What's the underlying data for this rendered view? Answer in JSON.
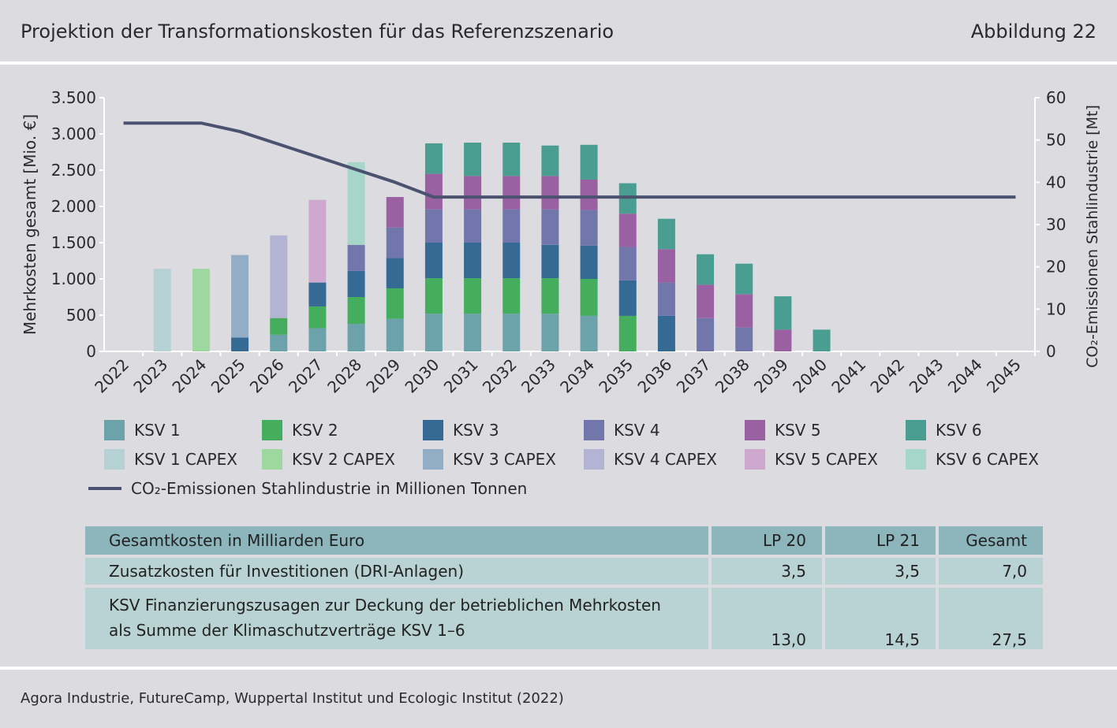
{
  "header": {
    "title": "Projektion der Transformationskosten für das Referenzszenario",
    "figure_label": "Abbildung 22"
  },
  "chart_data": {
    "type": "bar",
    "stacked": true,
    "categories": [
      "2022",
      "2023",
      "2024",
      "2025",
      "2026",
      "2027",
      "2028",
      "2029",
      "2030",
      "2031",
      "2032",
      "2033",
      "2034",
      "2035",
      "2036",
      "2037",
      "2038",
      "2039",
      "2040",
      "2041",
      "2042",
      "2043",
      "2044",
      "2045"
    ],
    "ylabel": "Mehrkosten gesamt [Mio. €]",
    "ylim": [
      0,
      3500
    ],
    "yticks": [
      0,
      500,
      1000,
      1500,
      2000,
      2500,
      3000,
      3500
    ],
    "ytick_labels": [
      "0",
      "500",
      "1.000",
      "1.500",
      "2.000",
      "2.500",
      "3.000",
      "3.500"
    ],
    "y2label": "CO₂-Emissionen Stahlindustrie [Mt]",
    "y2lim": [
      0,
      60
    ],
    "y2ticks": [
      0,
      10,
      20,
      30,
      40,
      50,
      60
    ],
    "series": [
      {
        "name": "KSV 1",
        "color": "#6ca3ab",
        "values": [
          0,
          0,
          0,
          0,
          230,
          320,
          380,
          450,
          520,
          520,
          520,
          520,
          490,
          0,
          0,
          0,
          0,
          0,
          0,
          0,
          0,
          0,
          0,
          0
        ]
      },
      {
        "name": "KSV 1 CAPEX",
        "color": "#b6d1d4",
        "values": [
          0,
          1140,
          0,
          0,
          0,
          0,
          0,
          0,
          0,
          0,
          0,
          0,
          0,
          0,
          0,
          0,
          0,
          0,
          0,
          0,
          0,
          0,
          0,
          0
        ]
      },
      {
        "name": "KSV 2",
        "color": "#44ad5e",
        "values": [
          0,
          0,
          0,
          0,
          230,
          300,
          370,
          420,
          490,
          490,
          490,
          490,
          510,
          490,
          0,
          0,
          0,
          0,
          0,
          0,
          0,
          0,
          0,
          0
        ]
      },
      {
        "name": "KSV 2 CAPEX",
        "color": "#9ed89f",
        "values": [
          0,
          0,
          1140,
          0,
          0,
          0,
          0,
          0,
          0,
          0,
          0,
          0,
          0,
          0,
          0,
          0,
          0,
          0,
          0,
          0,
          0,
          0,
          0,
          0
        ]
      },
      {
        "name": "KSV 3",
        "color": "#356a94",
        "values": [
          0,
          0,
          0,
          190,
          0,
          330,
          360,
          420,
          490,
          490,
          490,
          460,
          460,
          490,
          490,
          0,
          0,
          0,
          0,
          0,
          0,
          0,
          0,
          0
        ]
      },
      {
        "name": "KSV 3 CAPEX",
        "color": "#92adc6",
        "values": [
          0,
          0,
          0,
          1140,
          0,
          0,
          0,
          0,
          0,
          0,
          0,
          0,
          0,
          0,
          0,
          0,
          0,
          0,
          0,
          0,
          0,
          0,
          0,
          0
        ]
      },
      {
        "name": "KSV 4",
        "color": "#7277ab",
        "values": [
          0,
          0,
          0,
          0,
          0,
          0,
          360,
          420,
          460,
          460,
          460,
          490,
          490,
          460,
          460,
          460,
          330,
          0,
          0,
          0,
          0,
          0,
          0,
          0
        ]
      },
      {
        "name": "KSV 4 CAPEX",
        "color": "#b3b4d4",
        "values": [
          0,
          0,
          0,
          0,
          1140,
          0,
          0,
          0,
          0,
          0,
          0,
          0,
          0,
          0,
          0,
          0,
          0,
          0,
          0,
          0,
          0,
          0,
          0,
          0
        ]
      },
      {
        "name": "KSV 5",
        "color": "#9a61a2",
        "values": [
          0,
          0,
          0,
          0,
          0,
          0,
          0,
          420,
          490,
          460,
          460,
          460,
          420,
          460,
          460,
          460,
          460,
          300,
          0,
          0,
          0,
          0,
          0,
          0
        ]
      },
      {
        "name": "KSV 5 CAPEX",
        "color": "#cfa8d0",
        "values": [
          0,
          0,
          0,
          0,
          0,
          1140,
          0,
          0,
          0,
          0,
          0,
          0,
          0,
          0,
          0,
          0,
          0,
          0,
          0,
          0,
          0,
          0,
          0,
          0
        ]
      },
      {
        "name": "KSV 6",
        "color": "#4a9e91",
        "values": [
          0,
          0,
          0,
          0,
          0,
          0,
          0,
          0,
          420,
          460,
          460,
          420,
          480,
          420,
          420,
          420,
          420,
          460,
          300,
          0,
          0,
          0,
          0,
          0
        ]
      },
      {
        "name": "KSV 6 CAPEX",
        "color": "#a6d5c9",
        "values": [
          0,
          0,
          0,
          0,
          0,
          0,
          1140,
          0,
          0,
          0,
          0,
          0,
          0,
          0,
          0,
          0,
          0,
          0,
          0,
          0,
          0,
          0,
          0,
          0
        ]
      }
    ],
    "line_series": {
      "name": "CO₂-Emissionen Stahlindustrie in Millionen Tonnen",
      "color": "#4a5270",
      "axis": "right",
      "values": [
        54,
        54,
        54,
        52,
        49,
        46,
        43,
        40,
        36.5,
        36.5,
        36.5,
        36.5,
        36.5,
        36.5,
        36.5,
        36.5,
        36.5,
        36.5,
        36.5,
        36.5,
        36.5,
        36.5,
        36.5,
        36.5
      ]
    },
    "legend_placement": "bottom",
    "grid": false
  },
  "legend": {
    "items": [
      {
        "label": "KSV 1",
        "color": "#6ca3ab"
      },
      {
        "label": "KSV 2",
        "color": "#44ad5e"
      },
      {
        "label": "KSV 3",
        "color": "#356a94"
      },
      {
        "label": "KSV 4",
        "color": "#7277ab"
      },
      {
        "label": "KSV 5",
        "color": "#9a61a2"
      },
      {
        "label": "KSV 6",
        "color": "#4a9e91"
      },
      {
        "label": "KSV 1 CAPEX",
        "color": "#b6d1d4"
      },
      {
        "label": "KSV 2 CAPEX",
        "color": "#9ed89f"
      },
      {
        "label": "KSV 3 CAPEX",
        "color": "#92adc6"
      },
      {
        "label": "KSV 4 CAPEX",
        "color": "#b3b4d4"
      },
      {
        "label": "KSV 5 CAPEX",
        "color": "#cfa8d0"
      },
      {
        "label": "KSV 6 CAPEX",
        "color": "#a6d5c9"
      }
    ],
    "line_label": "CO₂-Emissionen Stahlindustrie in Millionen Tonnen"
  },
  "table": {
    "headers": [
      "Gesamtkosten in Milliarden Euro",
      "LP 20",
      "LP 21",
      "Gesamt"
    ],
    "rows": [
      {
        "label": "Zusatzkosten für Investitionen (DRI-Anlagen)",
        "lp20": "3,5",
        "lp21": "3,5",
        "total": "7,0"
      },
      {
        "label_line1": "KSV Finanzierungszusagen zur Deckung der betrieblichen Mehrkosten",
        "label_line2": "als Summe der Klimaschutzverträge KSV 1–6",
        "lp20": "13,0",
        "lp21": "14,5",
        "total": "27,5"
      }
    ]
  },
  "source": "Agora Industrie, FutureCamp, Wuppertal Institut und Ecologic Institut (2022)"
}
